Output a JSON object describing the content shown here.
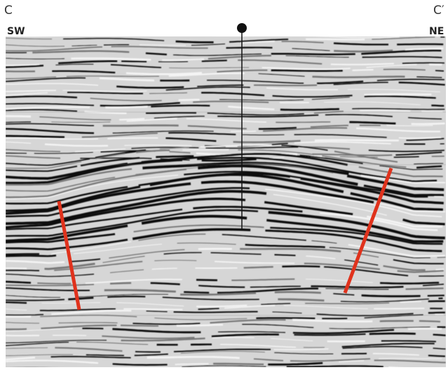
{
  "labels": {
    "left_point": "C",
    "right_point": "C′",
    "left_direction": "SW",
    "right_direction": "NE"
  }
}
